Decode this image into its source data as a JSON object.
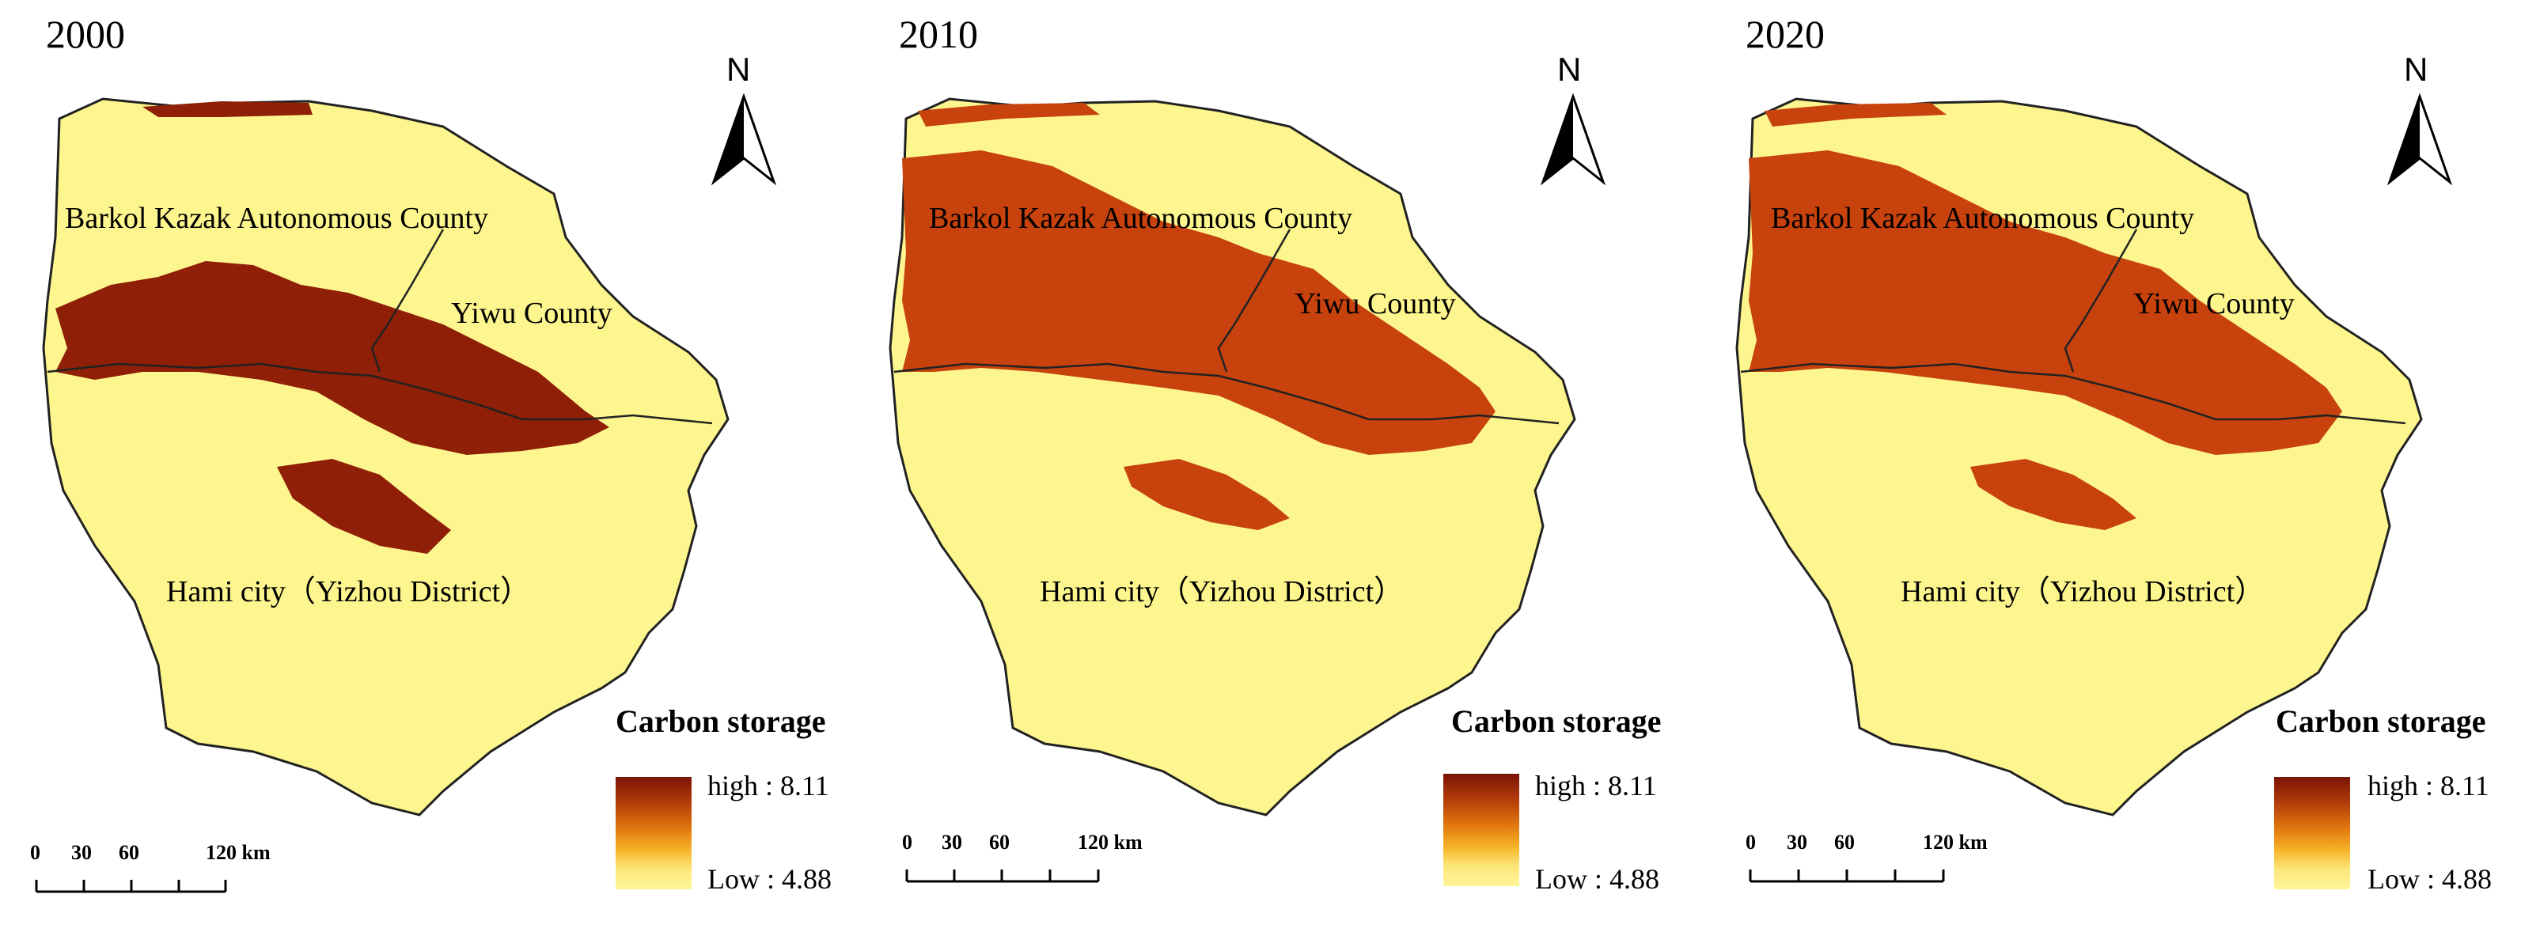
{
  "panels": [
    {
      "year": "2000"
    },
    {
      "year": "2010"
    },
    {
      "year": "2020"
    }
  ],
  "region_labels": {
    "barkol": "Barkol Kazak Autonomous County",
    "yiwu": "Yiwu County",
    "hami": "Hami city（Yizhou District）"
  },
  "north_arrow": {
    "letter": "N"
  },
  "legend": {
    "title": "Carbon storage",
    "high_label": "high : 8.11",
    "low_label": "Low : 4.88",
    "high_color": "#7a1405",
    "low_color": "#fef59a"
  },
  "scale_bar": {
    "ticks": [
      "0",
      "30",
      "60",
      "120 km"
    ]
  },
  "colors": {
    "low_storage": "#fdf68e",
    "high_storage": "#c8420e",
    "very_high_storage": "#8f1f07",
    "boundary": "#222222"
  }
}
